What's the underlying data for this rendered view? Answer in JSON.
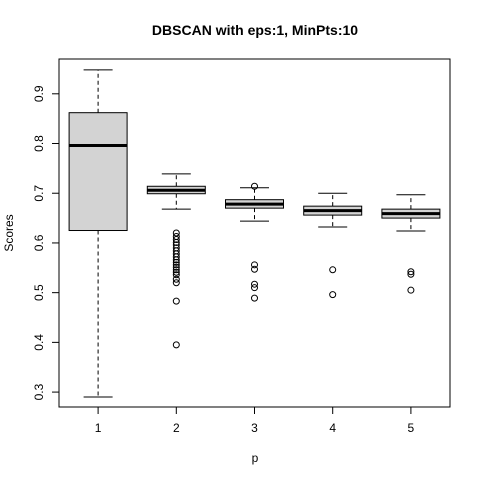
{
  "chart_data": {
    "type": "boxplot",
    "title": "DBSCAN with eps:1, MinPts:10",
    "xlabel": "p",
    "ylabel": "Scores",
    "categories": [
      "1",
      "2",
      "3",
      "4",
      "5"
    ],
    "xlim": [
      0.5,
      5.5
    ],
    "ylim": [
      0.27,
      0.97
    ],
    "yticks": [
      0.3,
      0.4,
      0.5,
      0.6,
      0.7,
      0.8,
      0.9
    ],
    "ytick_labels": [
      "0.3",
      "0.4",
      "0.5",
      "0.6",
      "0.7",
      "0.8",
      "0.9"
    ],
    "box_fill": "#d3d3d3",
    "boxes": [
      {
        "category": "1",
        "whisker_low": 0.29,
        "q1": 0.625,
        "median": 0.796,
        "q3": 0.862,
        "whisker_high": 0.948,
        "outliers": []
      },
      {
        "category": "2",
        "whisker_low": 0.668,
        "q1": 0.699,
        "median": 0.706,
        "q3": 0.714,
        "whisker_high": 0.739,
        "outliers": [
          0.62,
          0.613,
          0.607,
          0.601,
          0.596,
          0.59,
          0.584,
          0.578,
          0.572,
          0.566,
          0.561,
          0.556,
          0.551,
          0.546,
          0.541,
          0.536,
          0.527,
          0.52,
          0.483,
          0.395
        ]
      },
      {
        "category": "3",
        "whisker_low": 0.644,
        "q1": 0.67,
        "median": 0.678,
        "q3": 0.687,
        "whisker_high": 0.711,
        "outliers": [
          0.714,
          0.556,
          0.547,
          0.517,
          0.51,
          0.489
        ]
      },
      {
        "category": "4",
        "whisker_low": 0.632,
        "q1": 0.656,
        "median": 0.665,
        "q3": 0.674,
        "whisker_high": 0.7,
        "outliers": [
          0.546,
          0.496
        ]
      },
      {
        "category": "5",
        "whisker_low": 0.624,
        "q1": 0.65,
        "median": 0.659,
        "q3": 0.668,
        "whisker_high": 0.697,
        "outliers": [
          0.542,
          0.537,
          0.505
        ]
      }
    ]
  }
}
